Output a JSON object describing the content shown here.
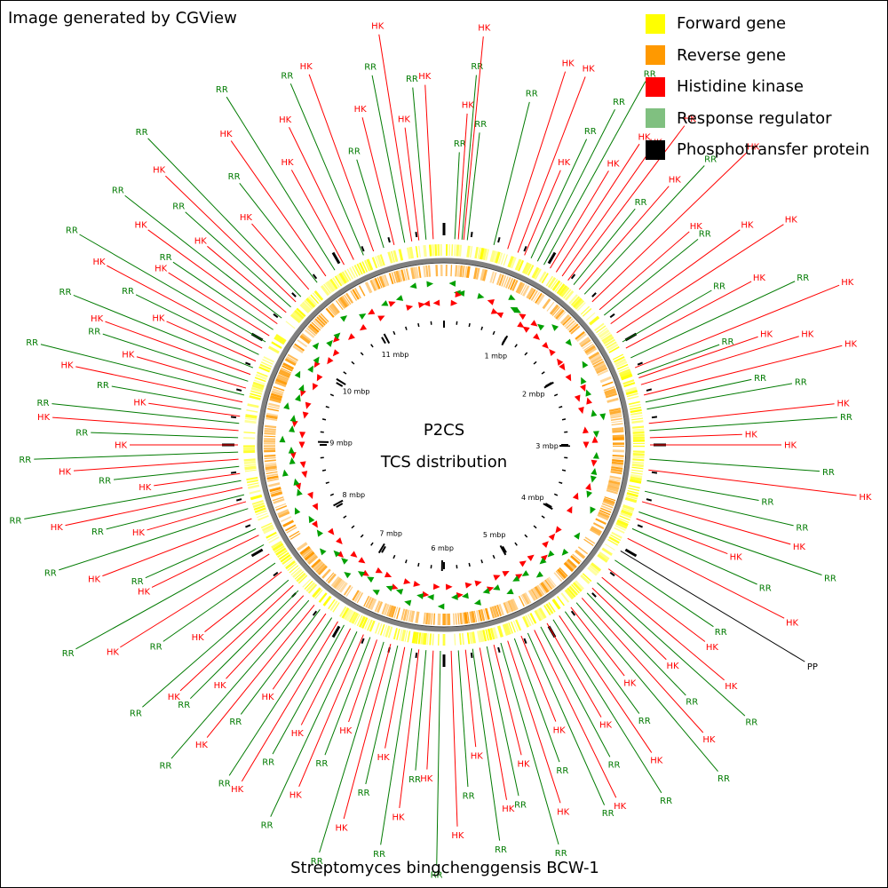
{
  "header": {
    "credit": "Image generated by CGView"
  },
  "legend": [
    {
      "label": "Forward gene",
      "color": "#ffff00"
    },
    {
      "label": "Reverse gene",
      "color": "#ff9900"
    },
    {
      "label": "Histidine kinase",
      "color": "#ff0000"
    },
    {
      "label": "Response regulator",
      "color": "#80c080"
    },
    {
      "label": "Phosphotransfer protein",
      "color": "#000000"
    }
  ],
  "map": {
    "title_line1": "P2CS",
    "title_line2": "TCS distribution",
    "organism": "Streptomyces bingchenggensis BCW-1",
    "genome_size_mbp": 11.94,
    "tick_labels": [
      "1 mbp",
      "2 mbp",
      "3 mbp",
      "4 mbp",
      "5 mbp",
      "6 mbp",
      "7 mbp",
      "8 mbp",
      "9 mbp",
      "10 mbp",
      "11 mbp"
    ],
    "label_colors": {
      "HK": "#ff0000",
      "RR": "#007a00",
      "PP": "#000000"
    },
    "features": [
      {
        "t": "RR",
        "deg": 3
      },
      {
        "t": "HK",
        "deg": 4
      },
      {
        "t": "RR",
        "deg": 5
      },
      {
        "t": "HK",
        "deg": 5.5
      },
      {
        "t": "RR",
        "deg": 6.5
      },
      {
        "t": "RR",
        "deg": 14
      },
      {
        "t": "HK",
        "deg": 18
      },
      {
        "t": "HK",
        "deg": 21
      },
      {
        "t": "HK",
        "deg": 23
      },
      {
        "t": "RR",
        "deg": 25
      },
      {
        "t": "RR",
        "deg": 27
      },
      {
        "t": "RR",
        "deg": 29
      },
      {
        "t": "HK",
        "deg": 31
      },
      {
        "t": "HK",
        "deg": 33
      },
      {
        "t": "HK",
        "deg": 35
      },
      {
        "t": "HK",
        "deg": 37
      },
      {
        "t": "RR",
        "deg": 39
      },
      {
        "t": "HK",
        "deg": 41
      },
      {
        "t": "RR",
        "deg": 43
      },
      {
        "t": "HK",
        "deg": 46
      },
      {
        "t": "HK",
        "deg": 49
      },
      {
        "t": "RR",
        "deg": 51
      },
      {
        "t": "HK",
        "deg": 54
      },
      {
        "t": "HK",
        "deg": 57
      },
      {
        "t": "RR",
        "deg": 60
      },
      {
        "t": "HK",
        "deg": 62
      },
      {
        "t": "RR",
        "deg": 65
      },
      {
        "t": "HK",
        "deg": 68
      },
      {
        "t": "RR",
        "deg": 70
      },
      {
        "t": "HK",
        "deg": 71
      },
      {
        "t": "HK",
        "deg": 73
      },
      {
        "t": "HK",
        "deg": 76
      },
      {
        "t": "RR",
        "deg": 78
      },
      {
        "t": "RR",
        "deg": 80
      },
      {
        "t": "HK",
        "deg": 84
      },
      {
        "t": "RR",
        "deg": 86
      },
      {
        "t": "HK",
        "deg": 88
      },
      {
        "t": "HK",
        "deg": 90
      },
      {
        "t": "RR",
        "deg": 94
      },
      {
        "t": "HK",
        "deg": 97
      },
      {
        "t": "RR",
        "deg": 100
      },
      {
        "t": "RR",
        "deg": 103
      },
      {
        "t": "HK",
        "deg": 106
      },
      {
        "t": "RR",
        "deg": 109
      },
      {
        "t": "HK",
        "deg": 111
      },
      {
        "t": "RR",
        "deg": 114
      },
      {
        "t": "HK",
        "deg": 117
      },
      {
        "t": "PP",
        "deg": 121
      },
      {
        "t": "RR",
        "deg": 124
      },
      {
        "t": "HK",
        "deg": 127
      },
      {
        "t": "HK",
        "deg": 130
      },
      {
        "t": "RR",
        "deg": 132
      },
      {
        "t": "HK",
        "deg": 134
      },
      {
        "t": "RR",
        "deg": 136
      },
      {
        "t": "HK",
        "deg": 138
      },
      {
        "t": "RR",
        "deg": 140
      },
      {
        "t": "HK",
        "deg": 142
      },
      {
        "t": "RR",
        "deg": 144
      },
      {
        "t": "HK",
        "deg": 146
      },
      {
        "t": "RR",
        "deg": 148
      },
      {
        "t": "HK",
        "deg": 150
      },
      {
        "t": "RR",
        "deg": 152
      },
      {
        "t": "HK",
        "deg": 154
      },
      {
        "t": "RR",
        "deg": 156
      },
      {
        "t": "HK",
        "deg": 158
      },
      {
        "t": "RR",
        "deg": 160
      },
      {
        "t": "HK",
        "deg": 162
      },
      {
        "t": "RR",
        "deg": 164
      },
      {
        "t": "HK",
        "deg": 166
      },
      {
        "t": "RR",
        "deg": 168
      },
      {
        "t": "HK",
        "deg": 170
      },
      {
        "t": "RR",
        "deg": 172
      },
      {
        "t": "HK",
        "deg": 174
      },
      {
        "t": "RR",
        "deg": 176
      },
      {
        "t": "HK",
        "deg": 178
      },
      {
        "t": "RR",
        "deg": 181
      },
      {
        "t": "HK",
        "deg": 183
      },
      {
        "t": "RR",
        "deg": 185
      },
      {
        "t": "HK",
        "deg": 187
      },
      {
        "t": "RR",
        "deg": 189
      },
      {
        "t": "HK",
        "deg": 191
      },
      {
        "t": "RR",
        "deg": 193
      },
      {
        "t": "HK",
        "deg": 195
      },
      {
        "t": "RR",
        "deg": 197
      },
      {
        "t": "HK",
        "deg": 199
      },
      {
        "t": "RR",
        "deg": 201
      },
      {
        "t": "HK",
        "deg": 203
      },
      {
        "t": "RR",
        "deg": 205
      },
      {
        "t": "HK",
        "deg": 207
      },
      {
        "t": "RR",
        "deg": 209
      },
      {
        "t": "HK",
        "deg": 211
      },
      {
        "t": "RR",
        "deg": 213
      },
      {
        "t": "HK",
        "deg": 215
      },
      {
        "t": "RR",
        "deg": 217
      },
      {
        "t": "HK",
        "deg": 219
      },
      {
        "t": "RR",
        "deg": 221
      },
      {
        "t": "HK",
        "deg": 223
      },
      {
        "t": "RR",
        "deg": 225
      },
      {
        "t": "HK",
        "deg": 227
      },
      {
        "t": "RR",
        "deg": 229
      },
      {
        "t": "HK",
        "deg": 232
      },
      {
        "t": "RR",
        "deg": 235
      },
      {
        "t": "HK",
        "deg": 238
      },
      {
        "t": "RR",
        "deg": 241
      },
      {
        "t": "HK",
        "deg": 244
      },
      {
        "t": "RR",
        "deg": 246
      },
      {
        "t": "HK",
        "deg": 249
      },
      {
        "t": "RR",
        "deg": 252
      },
      {
        "t": "HK",
        "deg": 254
      },
      {
        "t": "RR",
        "deg": 256
      },
      {
        "t": "HK",
        "deg": 258
      },
      {
        "t": "RR",
        "deg": 260
      },
      {
        "t": "HK",
        "deg": 262
      },
      {
        "t": "RR",
        "deg": 264
      },
      {
        "t": "HK",
        "deg": 266
      },
      {
        "t": "RR",
        "deg": 268
      },
      {
        "t": "HK",
        "deg": 270
      },
      {
        "t": "RR",
        "deg": 272
      },
      {
        "t": "HK",
        "deg": 274
      },
      {
        "t": "RR",
        "deg": 276
      },
      {
        "t": "HK",
        "deg": 278
      },
      {
        "t": "RR",
        "deg": 280
      },
      {
        "t": "HK",
        "deg": 282
      },
      {
        "t": "RR",
        "deg": 284
      },
      {
        "t": "HK",
        "deg": 286
      },
      {
        "t": "RR",
        "deg": 288
      },
      {
        "t": "HK",
        "deg": 290
      },
      {
        "t": "RR",
        "deg": 292
      },
      {
        "t": "HK",
        "deg": 294
      },
      {
        "t": "RR",
        "deg": 296
      },
      {
        "t": "HK",
        "deg": 298
      },
      {
        "t": "RR",
        "deg": 300
      },
      {
        "t": "HK",
        "deg": 302
      },
      {
        "t": "RR",
        "deg": 304
      },
      {
        "t": "HK",
        "deg": 306
      },
      {
        "t": "RR",
        "deg": 308
      },
      {
        "t": "HK",
        "deg": 310
      },
      {
        "t": "RR",
        "deg": 312
      },
      {
        "t": "HK",
        "deg": 314
      },
      {
        "t": "RR",
        "deg": 316
      },
      {
        "t": "HK",
        "deg": 319
      },
      {
        "t": "RR",
        "deg": 322
      },
      {
        "t": "HK",
        "deg": 325
      },
      {
        "t": "RR",
        "deg": 328
      },
      {
        "t": "HK",
        "deg": 331
      },
      {
        "t": "HK",
        "deg": 334
      },
      {
        "t": "RR",
        "deg": 337
      },
      {
        "t": "HK",
        "deg": 340
      },
      {
        "t": "RR",
        "deg": 343
      },
      {
        "t": "HK",
        "deg": 346
      },
      {
        "t": "RR",
        "deg": 349
      },
      {
        "t": "HK",
        "deg": 351
      },
      {
        "t": "HK",
        "deg": 353
      },
      {
        "t": "RR",
        "deg": 355
      },
      {
        "t": "HK",
        "deg": 357
      }
    ]
  }
}
